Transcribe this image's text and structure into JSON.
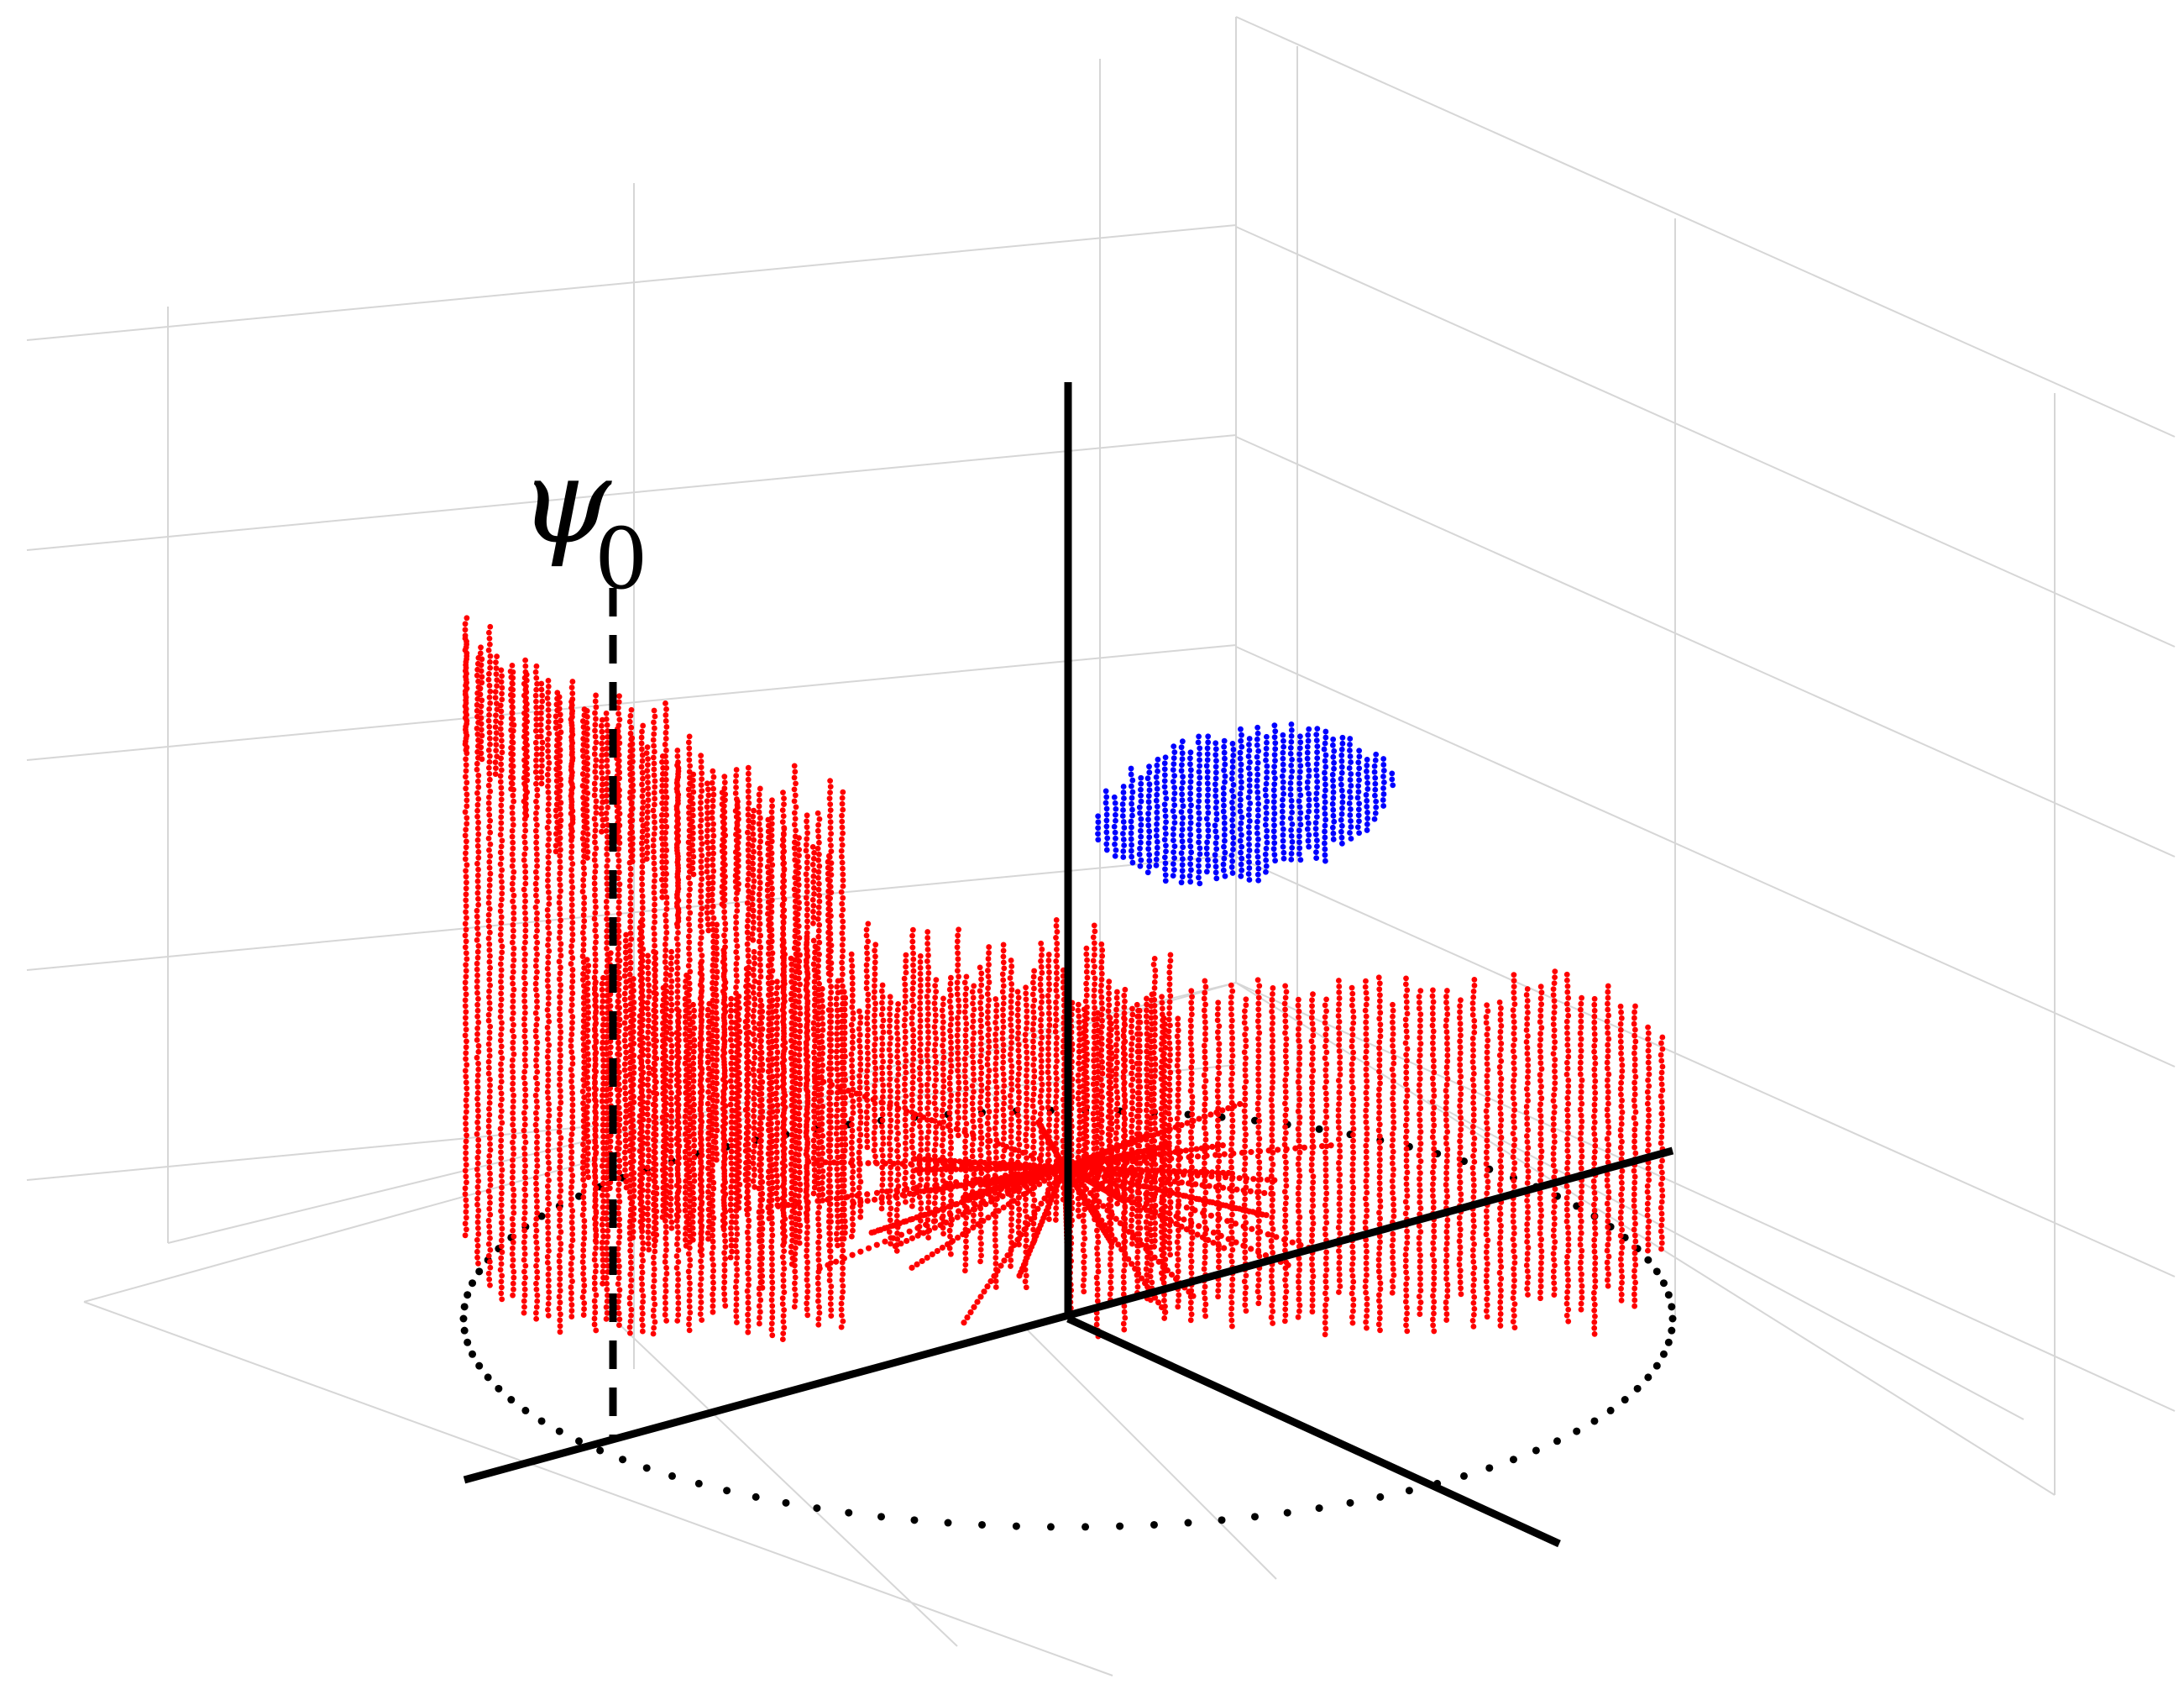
{
  "chart_data": {
    "type": "scatter",
    "view": "3d",
    "grid": true,
    "legend": "none",
    "axis_labels": {
      "psi_symbol": "ψ",
      "psi_subscript": "0"
    },
    "series": [
      {
        "color": "#ff0000",
        "marker": "dots",
        "shape": "semi-cylindrical shell with radial stripes"
      },
      {
        "color": "#0000ff",
        "marker": "dots",
        "shape": "compact elongated cluster"
      }
    ],
    "reference_circle": {
      "style": "dotted",
      "color": "#000000"
    }
  }
}
